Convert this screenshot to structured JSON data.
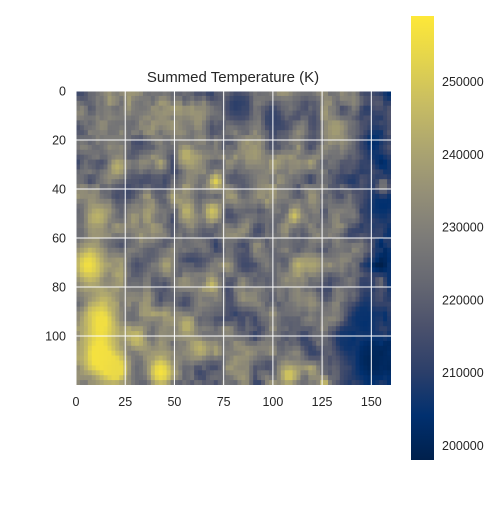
{
  "chart_data": {
    "type": "heatmap",
    "title": "Summed Temperature (K)",
    "xlabel": "",
    "ylabel": "",
    "x_ticks": [
      0,
      25,
      50,
      75,
      100,
      125,
      150
    ],
    "y_ticks": [
      0,
      20,
      40,
      60,
      80,
      100
    ],
    "x_range": [
      0,
      160
    ],
    "y_range": [
      120,
      0
    ],
    "grid": true,
    "colormap": "cividis",
    "colorbar": {
      "range": [
        198000,
        259000
      ],
      "ticks": [
        200000,
        210000,
        220000,
        230000,
        240000,
        250000
      ],
      "tick_labels": [
        "200000",
        "210000",
        "220000",
        "230000",
        "240000",
        "250000"
      ]
    },
    "field": {
      "base_mean": 226000,
      "description_of_values": "mottled field; bright yellow patches near lower-left, dark blue region along right edge",
      "blobs": [
        {
          "x": 5,
          "y": 70,
          "r": 9,
          "value": 256000
        },
        {
          "x": 12,
          "y": 92,
          "r": 10,
          "value": 256000
        },
        {
          "x": 10,
          "y": 108,
          "r": 9,
          "value": 257000
        },
        {
          "x": 20,
          "y": 113,
          "r": 7,
          "value": 254000
        },
        {
          "x": 42,
          "y": 114,
          "r": 7,
          "value": 257000
        },
        {
          "x": 30,
          "y": 100,
          "r": 5,
          "value": 246000
        },
        {
          "x": 62,
          "y": 104,
          "r": 5,
          "value": 244000
        },
        {
          "x": 55,
          "y": 95,
          "r": 5,
          "value": 244000
        },
        {
          "x": 107,
          "y": 115,
          "r": 5,
          "value": 250000
        },
        {
          "x": 125,
          "y": 118,
          "r": 3,
          "value": 248000
        },
        {
          "x": 70,
          "y": 36,
          "r": 4,
          "value": 252000
        },
        {
          "x": 68,
          "y": 48,
          "r": 4,
          "value": 248000
        },
        {
          "x": 55,
          "y": 48,
          "r": 4,
          "value": 244000
        },
        {
          "x": 110,
          "y": 50,
          "r": 4,
          "value": 248000
        },
        {
          "x": 112,
          "y": 70,
          "r": 4,
          "value": 244000
        },
        {
          "x": 10,
          "y": 50,
          "r": 6,
          "value": 244000
        },
        {
          "x": 20,
          "y": 30,
          "r": 5,
          "value": 244000
        },
        {
          "x": 55,
          "y": 25,
          "r": 5,
          "value": 244000
        },
        {
          "x": 68,
          "y": 78,
          "r": 4,
          "value": 246000
        },
        {
          "x": 45,
          "y": 70,
          "r": 5,
          "value": 240000
        },
        {
          "x": 90,
          "y": 25,
          "r": 6,
          "value": 238000
        },
        {
          "x": 130,
          "y": 15,
          "r": 6,
          "value": 238000
        },
        {
          "x": 155,
          "y": 38,
          "r": 3,
          "value": 240000
        },
        {
          "x": 150,
          "y": 20,
          "r": 8,
          "value": 203000
        },
        {
          "x": 155,
          "y": 45,
          "r": 10,
          "value": 204000
        },
        {
          "x": 150,
          "y": 110,
          "r": 14,
          "value": 200000
        },
        {
          "x": 145,
          "y": 90,
          "r": 8,
          "value": 206000
        },
        {
          "x": 135,
          "y": 100,
          "r": 6,
          "value": 208000
        },
        {
          "x": 80,
          "y": 5,
          "r": 8,
          "value": 210000
        },
        {
          "x": 100,
          "y": 10,
          "r": 7,
          "value": 212000
        },
        {
          "x": 25,
          "y": 40,
          "r": 6,
          "value": 214000
        },
        {
          "x": 115,
          "y": 100,
          "r": 5,
          "value": 212000
        },
        {
          "x": 85,
          "y": 70,
          "r": 5,
          "value": 214000
        },
        {
          "x": 30,
          "y": 70,
          "r": 5,
          "value": 216000
        }
      ]
    }
  }
}
